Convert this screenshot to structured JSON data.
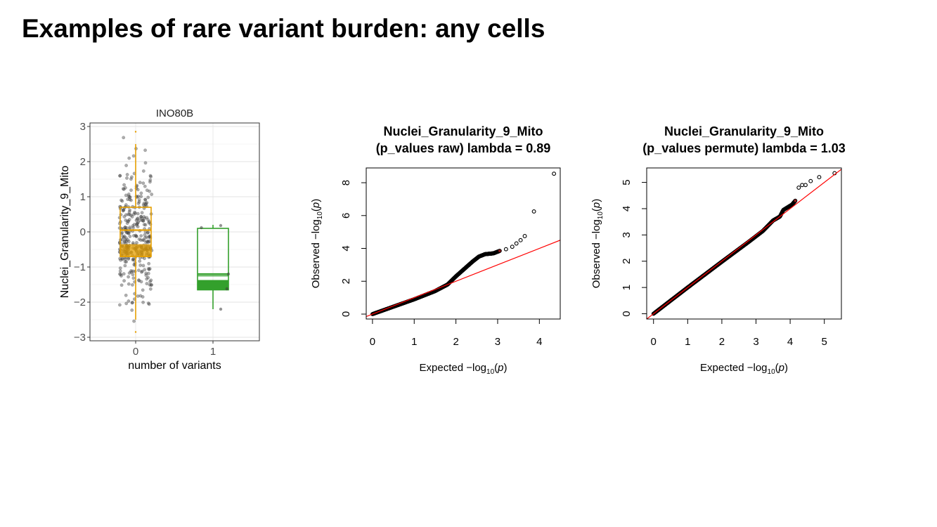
{
  "page": {
    "title": "Examples of rare variant burden: any cells"
  },
  "chart_data": [
    {
      "type": "box",
      "title": "INO80B",
      "xlabel": "number of variants",
      "ylabel": "Nuclei_Granularity_9_Mito",
      "categories": [
        "0",
        "1"
      ],
      "ylim": [
        -3.1,
        3.1
      ],
      "yticks": [
        -3,
        -2,
        -1,
        0,
        1,
        2,
        3
      ],
      "ytick_labels": [
        "−3",
        "−2",
        "−1",
        "0",
        "1",
        "2",
        "3"
      ],
      "grid": true,
      "boxes": [
        {
          "category": "0",
          "color": "#E69F00",
          "q1": -0.7,
          "median": 0.05,
          "q3": 0.7,
          "whisker_low": -2.5,
          "whisker_high": 2.5,
          "outliers": [
            2.85,
            -2.85
          ]
        },
        {
          "category": "1",
          "color": "#33A02C",
          "q1": -1.65,
          "median": -1.2,
          "q3": 0.1,
          "whisker_low": -2.2,
          "whisker_high": 0.2
        }
      ],
      "points_group1": [
        {
          "x": 0.85,
          "y": 0.12
        },
        {
          "x": 1.1,
          "y": 0.18
        },
        {
          "x": 1.2,
          "y": -1.2
        },
        {
          "x": 1.18,
          "y": -1.62
        },
        {
          "x": 1.1,
          "y": -2.2
        }
      ]
    },
    {
      "type": "qq",
      "title": "Nuclei_Granularity_9_Mito",
      "subtitle": "(p_values raw) lambda = 0.89",
      "xlabel_main": "Expected",
      "ylabel_main": "Observed",
      "xlim": [
        -0.15,
        4.5
      ],
      "ylim": [
        -0.3,
        8.9
      ],
      "xticks": [
        0,
        1,
        2,
        3,
        4
      ],
      "yticks": [
        0,
        2,
        4,
        6,
        8
      ],
      "reference_line_color": "#FF0000",
      "curve": [
        [
          0,
          0
        ],
        [
          0.5,
          0.45
        ],
        [
          1,
          0.9
        ],
        [
          1.5,
          1.4
        ],
        [
          1.8,
          1.8
        ],
        [
          2,
          2.3
        ],
        [
          2.2,
          2.75
        ],
        [
          2.4,
          3.2
        ],
        [
          2.55,
          3.5
        ],
        [
          2.7,
          3.65
        ],
        [
          2.9,
          3.7
        ],
        [
          3.05,
          3.85
        ]
      ],
      "top_points": [
        [
          3.2,
          3.95
        ],
        [
          3.35,
          4.1
        ],
        [
          3.45,
          4.3
        ],
        [
          3.55,
          4.5
        ],
        [
          3.65,
          4.75
        ],
        [
          3.87,
          6.25
        ],
        [
          4.35,
          8.55
        ]
      ]
    },
    {
      "type": "qq",
      "title": "Nuclei_Granularity_9_Mito",
      "subtitle": "(p_values permute) lambda = 1.03",
      "xlabel_main": "Expected",
      "ylabel_main": "Observed",
      "xlim": [
        -0.2,
        5.5
      ],
      "ylim": [
        -0.2,
        5.55
      ],
      "xticks": [
        0,
        1,
        2,
        3,
        4,
        5
      ],
      "yticks": [
        0,
        1,
        2,
        3,
        4,
        5
      ],
      "reference_line_color": "#FF0000",
      "curve": [
        [
          0,
          0
        ],
        [
          1,
          1
        ],
        [
          2,
          1.98
        ],
        [
          2.8,
          2.75
        ],
        [
          3.2,
          3.15
        ],
        [
          3.5,
          3.55
        ],
        [
          3.7,
          3.7
        ],
        [
          3.8,
          3.95
        ],
        [
          4.05,
          4.15
        ],
        [
          4.15,
          4.3
        ]
      ],
      "top_points": [
        [
          4.25,
          4.8
        ],
        [
          4.35,
          4.9
        ],
        [
          4.45,
          4.9
        ],
        [
          4.6,
          5.05
        ],
        [
          4.85,
          5.2
        ],
        [
          5.3,
          5.35
        ]
      ]
    }
  ]
}
